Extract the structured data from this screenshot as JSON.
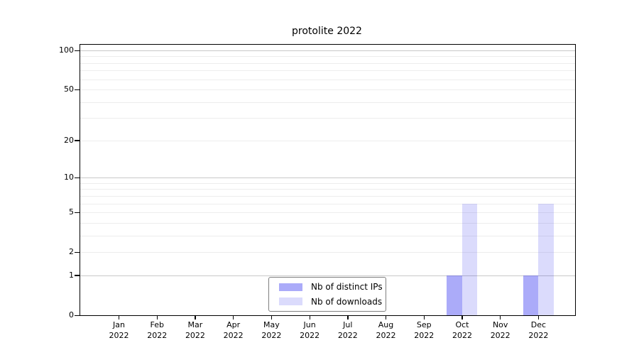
{
  "chart_data": {
    "type": "bar",
    "title": "protolite 2022",
    "categories": [
      "Jan",
      "Feb",
      "Mar",
      "Apr",
      "May",
      "Jun",
      "Jul",
      "Aug",
      "Sep",
      "Oct",
      "Nov",
      "Dec"
    ],
    "year_label": "2022",
    "series": [
      {
        "name": "Nb of distinct IPs",
        "color": "rgba(34,34,238,0.38)",
        "values": [
          0,
          0,
          0,
          0,
          0,
          0,
          0,
          0,
          0,
          1,
          0,
          1
        ]
      },
      {
        "name": "Nb of downloads",
        "color": "rgba(34,34,238,0.16)",
        "values": [
          0,
          0,
          0,
          0,
          0,
          0,
          0,
          0,
          0,
          6,
          0,
          6
        ]
      }
    ],
    "y_scale": "log1p",
    "y_ticks": [
      0,
      1,
      2,
      5,
      10,
      20,
      50,
      100
    ],
    "y_major_gridlines": [
      1,
      10,
      100
    ],
    "y_minor_gridlines": [
      2,
      3,
      4,
      5,
      6,
      7,
      8,
      9,
      20,
      30,
      40,
      50,
      60,
      70,
      80,
      90
    ],
    "ylim": [
      0,
      110
    ],
    "grid": true,
    "legend_position": "bottom-center",
    "colors": {
      "axis": "#000000",
      "major_grid": "#c8c8c8",
      "minor_grid": "#ededed",
      "background": "#ffffff"
    }
  }
}
